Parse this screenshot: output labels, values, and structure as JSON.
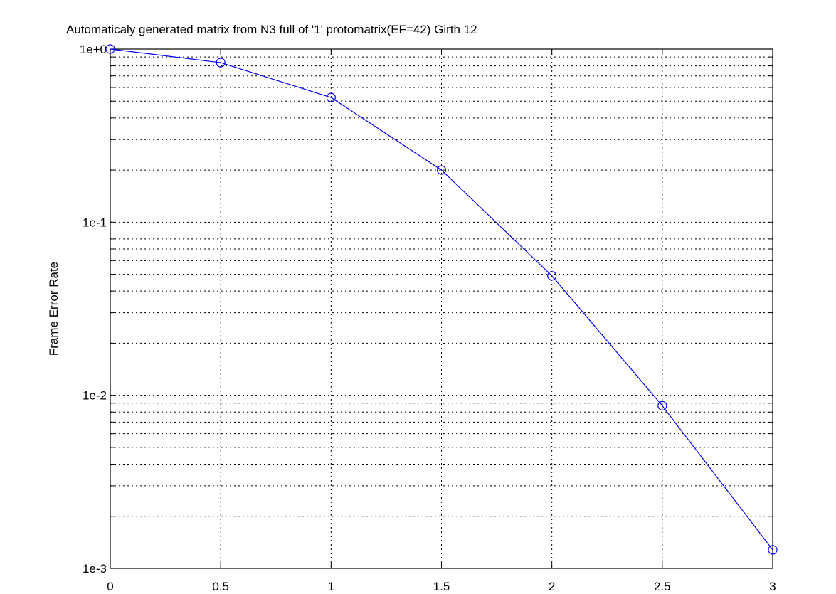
{
  "chart_data": {
    "type": "line",
    "title": "Automaticaly generated matrix from N3 full of '1' protomatrix(EF=42) Girth 12",
    "xlabel": "",
    "ylabel": "Frame Error Rate",
    "xlim": [
      0,
      3
    ],
    "ylim": [
      0.001,
      1
    ],
    "yscale": "log",
    "grid": true,
    "x_ticks": [
      "0",
      "0.5",
      "1",
      "1.5",
      "2",
      "2.5",
      "3"
    ],
    "y_ticks": [
      "1e-3",
      "1e-2",
      "1e-1",
      "1e+0"
    ],
    "series": [
      {
        "color": "#0000ff",
        "marker": "circle",
        "x": [
          0,
          0.5,
          1,
          1.5,
          2,
          2.5,
          3
        ],
        "y": [
          1.0,
          0.835,
          0.525,
          0.2,
          0.049,
          0.0087,
          0.00128
        ]
      }
    ]
  }
}
